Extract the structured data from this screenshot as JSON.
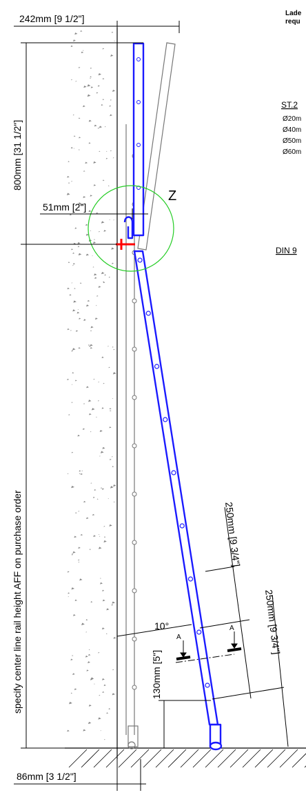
{
  "dimensions": {
    "top_width": "242mm [9 1/2\"]",
    "upper_height": "800mm [31 1/2\"]",
    "clamp_offset": "51mm [2\"]",
    "rail_height_note": "specify center line rail height AFF on purchase order",
    "angle": "10°",
    "rung_spacing_1": "250mm [9 3/4\"]",
    "rung_spacing_2": "250mm [9 3/4\"]",
    "foot_height": "130mm [5\"]",
    "bottom_width": "86mm [3 1/2\"]"
  },
  "labels": {
    "detail_z": "Z",
    "section_a_left": "A",
    "section_a_right": "A"
  },
  "side_notes": {
    "header_line1": "Lade",
    "header_line2": "requ",
    "standard": "ST.2",
    "sizes": [
      "Ø20m",
      "Ø40m",
      "Ø50m",
      "Ø60m"
    ],
    "din": "DIN 9"
  },
  "colors": {
    "ladder": "#1a1aff",
    "clamp": "#ff0000",
    "detail_circle": "#22cc22",
    "wall_speckle": "#888888"
  }
}
